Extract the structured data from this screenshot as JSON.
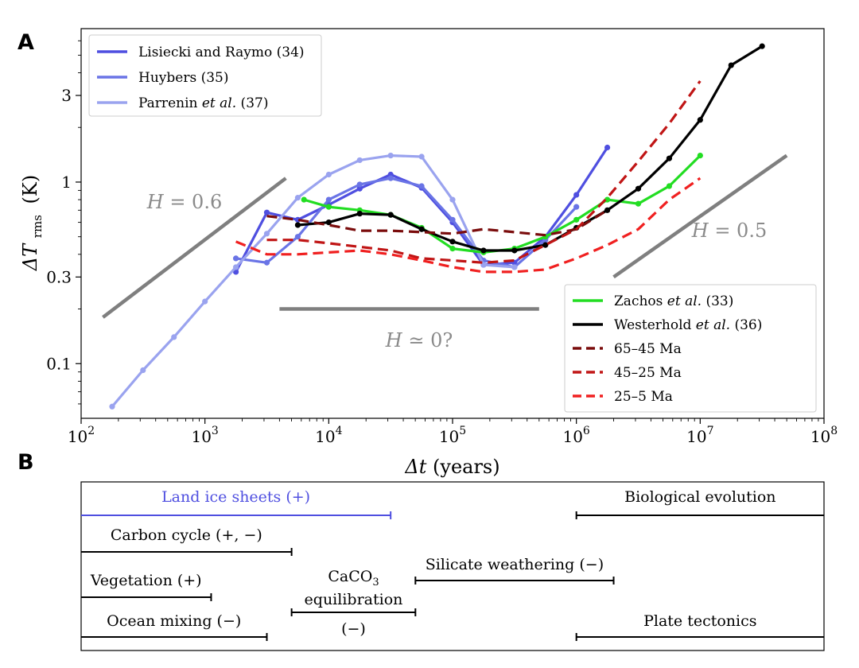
{
  "panels": {
    "a": "A",
    "b": "B"
  },
  "chart_data": {
    "type": "line",
    "xscale": "log",
    "yscale": "log",
    "xlim": [
      100,
      100000000
    ],
    "ylim": [
      0.05,
      7.0
    ],
    "xlabel_parts": {
      "delta": "Δt",
      "unit": "(years)"
    },
    "ylabel_parts": {
      "delta": "ΔT",
      "sub": "rms",
      "unit": "(K)"
    },
    "x_ticks": [
      {
        "value": 100,
        "base": "10",
        "exp": "2"
      },
      {
        "value": 1000,
        "base": "10",
        "exp": "3"
      },
      {
        "value": 10000,
        "base": "10",
        "exp": "4"
      },
      {
        "value": 100000,
        "base": "10",
        "exp": "5"
      },
      {
        "value": 1000000,
        "base": "10",
        "exp": "6"
      },
      {
        "value": 10000000,
        "base": "10",
        "exp": "7"
      },
      {
        "value": 100000000,
        "base": "10",
        "exp": "8"
      }
    ],
    "y_ticks": [
      {
        "value": 0.1,
        "label": "0.1"
      },
      {
        "value": 0.3,
        "label": "0.3"
      },
      {
        "value": 1,
        "label": "1"
      },
      {
        "value": 3,
        "label": "3"
      }
    ],
    "legend_top": [
      {
        "pre": "Lisiecki and Raymo ",
        "italic": "",
        "post": "(34)",
        "color": "#4f4fe0"
      },
      {
        "pre": "Huybers ",
        "italic": "",
        "post": "(35)",
        "color": "#6a74e6"
      },
      {
        "pre": "Parrenin ",
        "italic": "et al.",
        "post": " (37)",
        "color": "#9aa3ef"
      }
    ],
    "legend_bottom": [
      {
        "pre": "Zachos ",
        "italic": "et al.",
        "post": " (33)",
        "color": "#22dd22",
        "dashed": false
      },
      {
        "pre": "Westerhold ",
        "italic": "et al.",
        "post": " (36)",
        "color": "#000000",
        "dashed": false
      },
      {
        "pre": "65–45 Ma",
        "italic": "",
        "post": "",
        "color": "#7a0c0c",
        "dashed": true
      },
      {
        "pre": "45–25 Ma",
        "italic": "",
        "post": "",
        "color": "#c01515",
        "dashed": true
      },
      {
        "pre": "25–5 Ma",
        "italic": "",
        "post": "",
        "color": "#f02020",
        "dashed": true
      }
    ],
    "series": [
      {
        "name": "Lisiecki and Raymo (34)",
        "color": "#4f4fe0",
        "markers": true,
        "dashed": false,
        "x": [
          1778,
          3162,
          5623,
          10000,
          17783,
          31623,
          56234,
          100000,
          177828,
          316228,
          562341,
          1000000,
          1778279
        ],
        "y": [
          0.32,
          0.68,
          0.62,
          0.75,
          0.92,
          1.1,
          0.93,
          0.6,
          0.35,
          0.36,
          0.5,
          0.85,
          1.55
        ]
      },
      {
        "name": "Huybers (35)",
        "color": "#6a74e6",
        "markers": true,
        "dashed": false,
        "x": [
          1778,
          3162,
          5623,
          10000,
          17783,
          31623,
          56234,
          100000,
          177828,
          316228,
          562341,
          1000000
        ],
        "y": [
          0.38,
          0.36,
          0.5,
          0.8,
          0.97,
          1.05,
          0.95,
          0.62,
          0.37,
          0.34,
          0.48,
          0.73
        ]
      },
      {
        "name": "Parrenin et al. (37)",
        "color": "#9aa3ef",
        "markers": true,
        "dashed": false,
        "x": [
          178,
          316,
          562,
          1000,
          1778,
          3162,
          5623,
          10000,
          17783,
          31623,
          56234,
          100000,
          177828,
          316228
        ],
        "y": [
          0.058,
          0.092,
          0.14,
          0.22,
          0.34,
          0.52,
          0.82,
          1.1,
          1.32,
          1.4,
          1.38,
          0.8,
          0.35,
          0.34
        ]
      },
      {
        "name": "Zachos et al. (33)",
        "color": "#22dd22",
        "markers": true,
        "dashed": false,
        "x": [
          6310,
          10000,
          17783,
          31623,
          56234,
          100000,
          177828,
          316228,
          562341,
          1000000,
          1778279,
          3162278,
          5623413,
          10000000
        ],
        "y": [
          0.8,
          0.73,
          0.7,
          0.66,
          0.56,
          0.43,
          0.41,
          0.43,
          0.5,
          0.62,
          0.8,
          0.76,
          0.95,
          1.4
        ]
      },
      {
        "name": "Westerhold et al. (36)",
        "color": "#000000",
        "markers": true,
        "dashed": false,
        "x": [
          5623,
          10000,
          17783,
          31623,
          56234,
          100000,
          177828,
          316228,
          562341,
          1000000,
          1778279,
          3162278,
          5623413,
          10000000,
          17782794,
          31622777
        ],
        "y": [
          0.58,
          0.6,
          0.67,
          0.66,
          0.55,
          0.47,
          0.42,
          0.42,
          0.45,
          0.56,
          0.7,
          0.92,
          1.35,
          2.2,
          4.4,
          5.6
        ]
      },
      {
        "name": "65–45 Ma",
        "color": "#7a0c0c",
        "markers": false,
        "dashed": true,
        "x": [
          3162,
          5623,
          10000,
          17783,
          31623,
          56234,
          100000,
          177828,
          316228,
          562341,
          1000000,
          1778279
        ],
        "y": [
          0.65,
          0.62,
          0.58,
          0.54,
          0.54,
          0.53,
          0.52,
          0.55,
          0.53,
          0.51,
          0.55,
          0.7
        ]
      },
      {
        "name": "45–25 Ma",
        "color": "#c01515",
        "markers": false,
        "dashed": true,
        "x": [
          3162,
          5623,
          10000,
          17783,
          31623,
          56234,
          100000,
          177828,
          316228,
          562341,
          1000000,
          1778279,
          3162278,
          5623413,
          10000000
        ],
        "y": [
          0.48,
          0.48,
          0.46,
          0.44,
          0.42,
          0.38,
          0.37,
          0.36,
          0.37,
          0.45,
          0.55,
          0.82,
          1.3,
          2.1,
          3.6
        ]
      },
      {
        "name": "25–5 Ma",
        "color": "#f02020",
        "markers": false,
        "dashed": true,
        "x": [
          1778,
          3162,
          5623,
          10000,
          17783,
          31623,
          56234,
          100000,
          177828,
          316228,
          562341,
          1000000,
          1778279,
          3162278,
          5623413,
          10000000
        ],
        "y": [
          0.47,
          0.4,
          0.4,
          0.41,
          0.42,
          0.4,
          0.37,
          0.34,
          0.32,
          0.32,
          0.33,
          0.38,
          0.45,
          0.55,
          0.8,
          1.05
        ]
      }
    ],
    "guides": [
      {
        "label_var": "H",
        "label_op": " = ",
        "label_val": "0.6",
        "x": [
          150,
          4500
        ],
        "y": [
          0.18,
          1.05
        ]
      },
      {
        "label_var": "H",
        "label_op": " ≃ ",
        "label_val": "0?",
        "x": [
          4000,
          500000
        ],
        "y": [
          0.2,
          0.2
        ]
      },
      {
        "label_var": "H",
        "label_op": " = ",
        "label_val": "0.5",
        "x": [
          2000000,
          50000000
        ],
        "y": [
          0.3,
          1.4
        ]
      }
    ]
  },
  "processes": [
    {
      "label": "Land ice sheets (+)",
      "start": 100,
      "end": 31623,
      "color": "#4f4fe0"
    },
    {
      "label": "Carbon cycle (+, −)",
      "start": 100,
      "end": 5011,
      "color": "#000000"
    },
    {
      "label": "Vegetation (+)",
      "start": 100,
      "end": 1122,
      "color": "#000000"
    },
    {
      "label": "Ocean mixing (−)",
      "start": 100,
      "end": 3162,
      "color": "#000000"
    },
    {
      "label_top": "CaCO",
      "label_sub": "3",
      "label_mid": "equilibration",
      "label_bot": "(−)",
      "start": 5011,
      "end": 50119,
      "color": "#000000"
    },
    {
      "label": "Silicate weathering (−)",
      "start": 50119,
      "end": 2000000,
      "color": "#000000"
    },
    {
      "label": "Biological evolution",
      "start": 1000000,
      "end": 100000000,
      "color": "#000000"
    },
    {
      "label": "Plate tectonics",
      "start": 1000000,
      "end": 100000000,
      "color": "#000000"
    }
  ]
}
